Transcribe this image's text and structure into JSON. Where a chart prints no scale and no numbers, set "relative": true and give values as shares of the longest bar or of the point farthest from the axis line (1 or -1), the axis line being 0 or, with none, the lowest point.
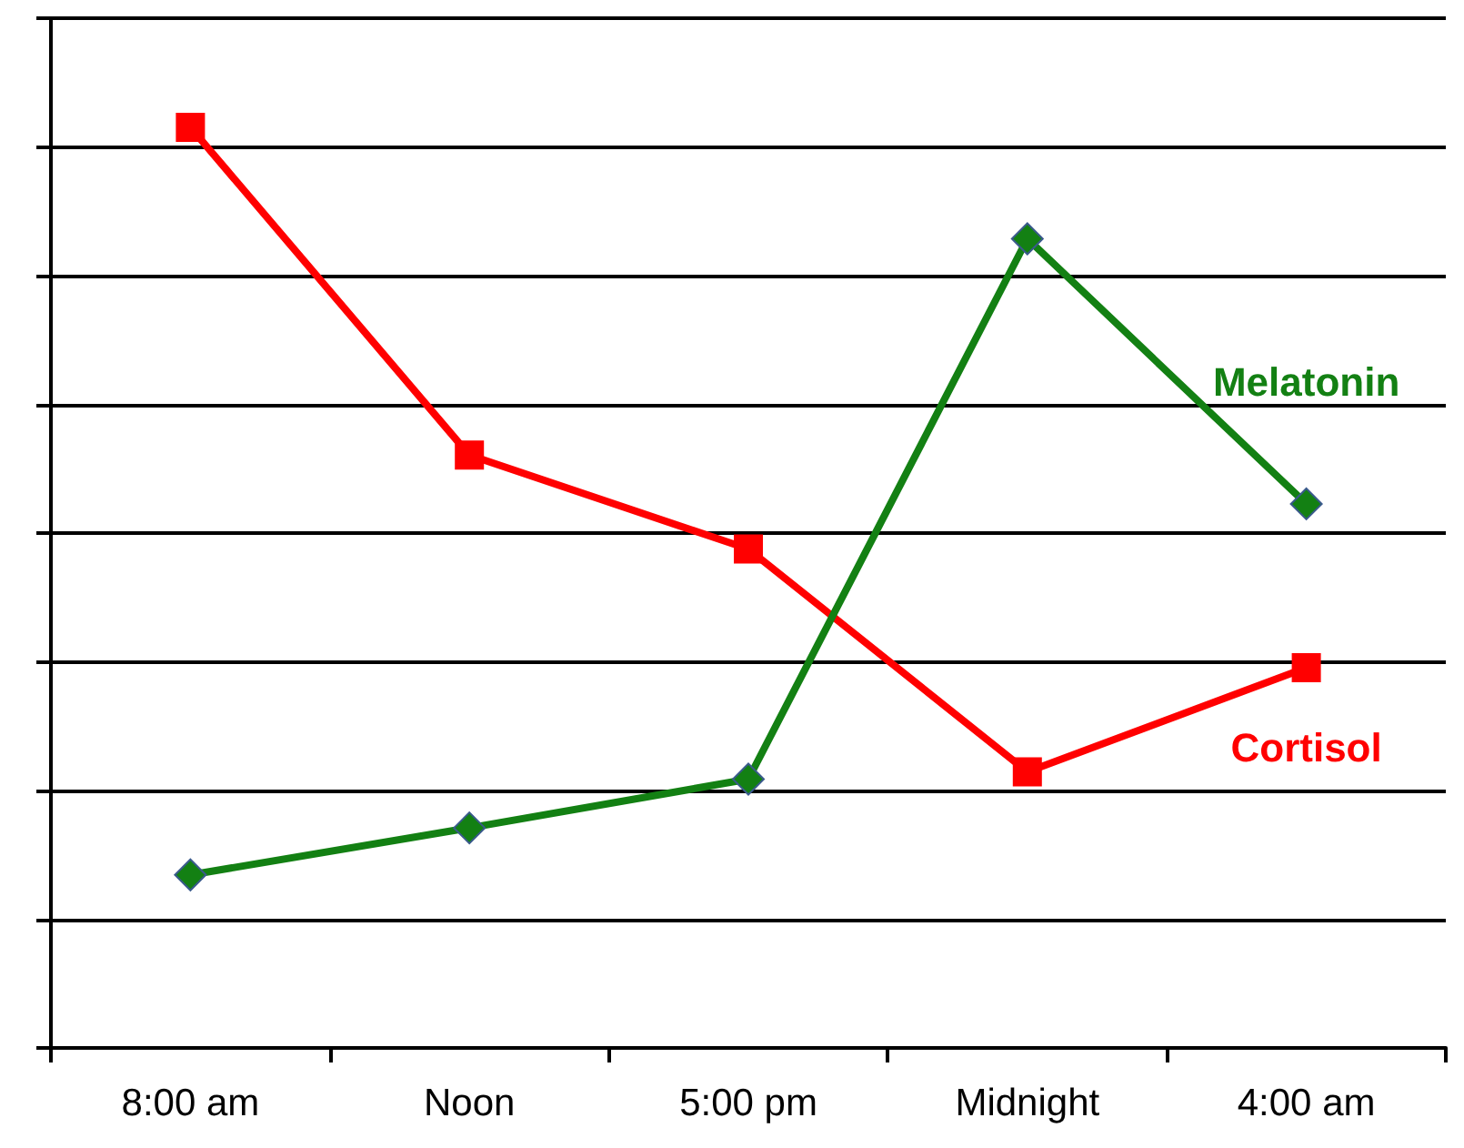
{
  "chart_data": {
    "type": "line",
    "relative": true,
    "categories": [
      "8:00 am",
      "Noon",
      "5:00 pm",
      "Midnight",
      "4:00 am"
    ],
    "series": [
      {
        "name": "Cortisol",
        "color": "#ff0000",
        "marker": "square",
        "values": [
          1,
          0.644,
          0.542,
          0.3,
          0.413
        ]
      },
      {
        "name": "Melatonin",
        "color": "#138013",
        "marker": "diamond",
        "values": [
          0.188,
          0.239,
          0.292,
          0.879,
          0.591
        ]
      }
    ],
    "grid": "y",
    "legend": false,
    "line_style": "solid"
  }
}
